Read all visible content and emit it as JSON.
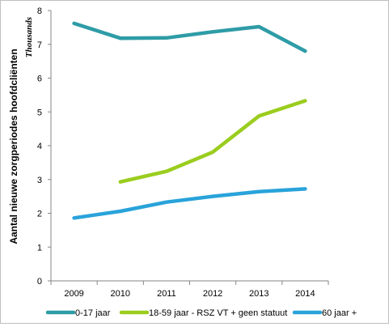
{
  "chart_data": {
    "type": "line",
    "title": "",
    "xlabel": "",
    "ylabel": "Aantal nieuwe zorgperiodes hoofdcliënten",
    "y_unit_label": "Thousands",
    "categories": [
      "2009",
      "2010",
      "2011",
      "2012",
      "2013",
      "2014"
    ],
    "y_ticks": [
      "0",
      "1",
      "2",
      "3",
      "4",
      "5",
      "6",
      "7",
      "8"
    ],
    "ylim": [
      0,
      8
    ],
    "grid": false,
    "legend_position": "bottom",
    "series": [
      {
        "name": "0-17 jaar",
        "color": "#2e9ca6",
        "values": [
          7.62,
          7.18,
          7.19,
          7.37,
          7.52,
          6.8
        ]
      },
      {
        "name": "18-59 jaar - RSZ VT + geen statuut",
        "color": "#9acd1e",
        "values": [
          null,
          2.93,
          3.24,
          3.81,
          4.88,
          5.33
        ]
      },
      {
        "name": "60 jaar +",
        "color": "#29a3da",
        "values": [
          1.86,
          2.06,
          2.33,
          2.5,
          2.64,
          2.72
        ]
      }
    ]
  }
}
